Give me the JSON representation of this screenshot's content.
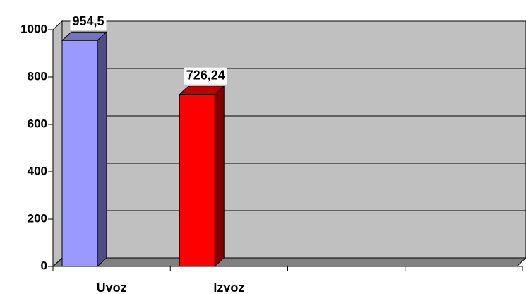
{
  "chart_data": {
    "type": "bar3d",
    "categories": [
      "Uvoz",
      "Izvoz",
      null,
      null
    ],
    "values": [
      954.5,
      726.24,
      null,
      null
    ],
    "value_labels": [
      "954,5",
      "726,24",
      null,
      null
    ],
    "colors": [
      "#9999ff",
      "#ff0000",
      null,
      null
    ],
    "ylim": [
      0,
      1000
    ],
    "yticks": [
      0,
      200,
      400,
      600,
      800,
      1000
    ],
    "grid": true
  }
}
